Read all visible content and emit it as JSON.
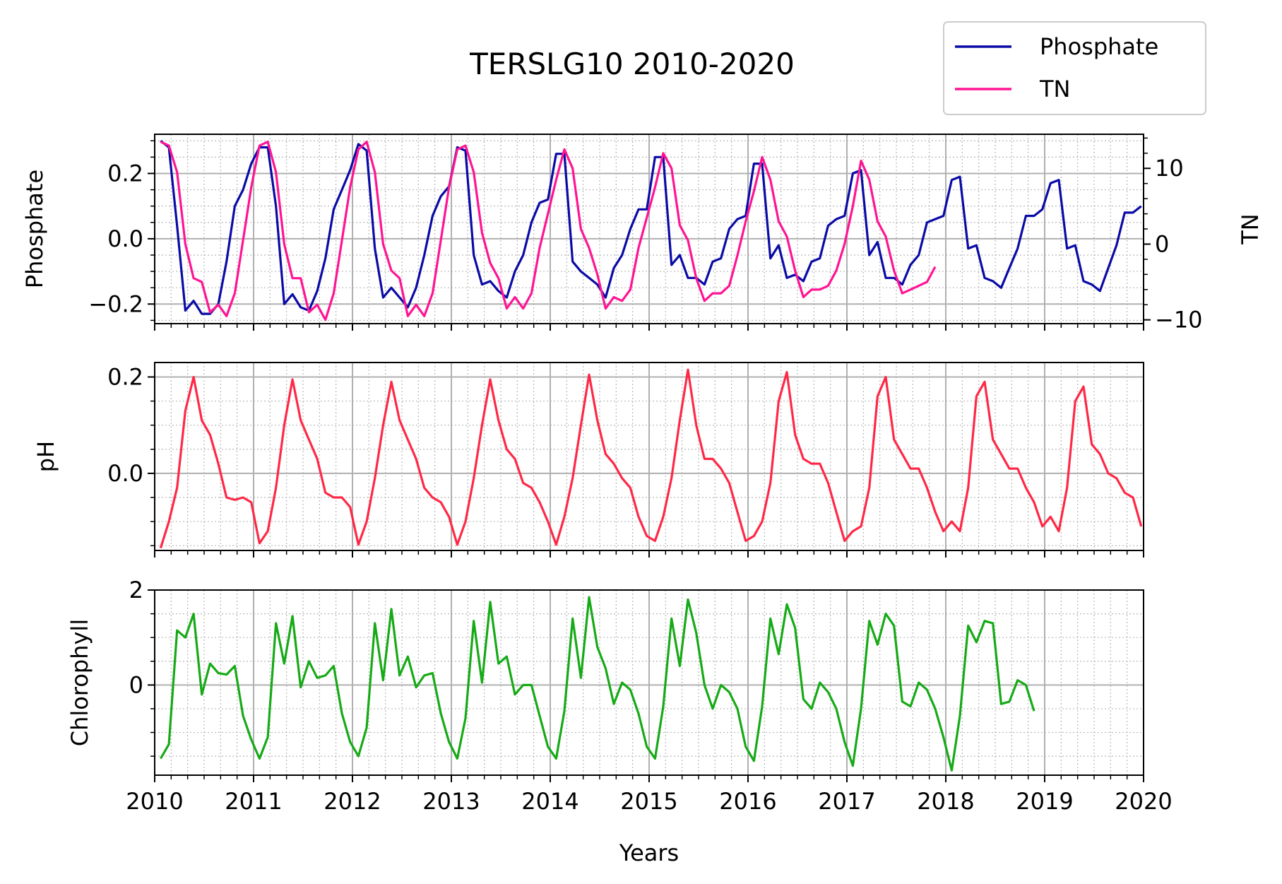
{
  "chart_data": {
    "type": "line",
    "title": "TERSLG10 2010-2020",
    "xlabel": "Years",
    "x_ticks": [
      "2010",
      "2011",
      "2012",
      "2013",
      "2014",
      "2015",
      "2016",
      "2017",
      "2018",
      "2019",
      "2020"
    ],
    "xlim": [
      2010,
      2020
    ],
    "legend": {
      "placement": "top-right",
      "entries": [
        {
          "name": "Phosphate",
          "color": "#0a0aa6"
        },
        {
          "name": "TN",
          "color": "#ff1493"
        }
      ]
    },
    "panels": [
      {
        "ylabel": "Phosphate",
        "ylim": [
          -0.26,
          0.32
        ],
        "y_ticks": [
          "−0.2",
          "0.0",
          "0.2"
        ],
        "y_tick_values": [
          -0.2,
          0.0,
          0.2
        ],
        "grid": true,
        "right_axis": {
          "ylabel": "TN",
          "ylim": [
            -10.5,
            14.5
          ],
          "y_ticks": [
            "−10",
            "0",
            "10"
          ],
          "y_tick_values": [
            -10,
            0,
            10
          ]
        },
        "series": [
          {
            "name": "Phosphate",
            "color": "#0a0aa6",
            "axis": "left",
            "x_start": 2010.06,
            "x_step": 0.08333,
            "values": [
              0.3,
              0.28,
              0.04,
              -0.22,
              -0.19,
              -0.23,
              -0.23,
              -0.2,
              -0.07,
              0.1,
              0.15,
              0.23,
              0.28,
              0.28,
              0.1,
              -0.2,
              -0.17,
              -0.21,
              -0.22,
              -0.16,
              -0.06,
              0.09,
              0.15,
              0.21,
              0.29,
              0.27,
              -0.03,
              -0.18,
              -0.15,
              -0.18,
              -0.21,
              -0.15,
              -0.05,
              0.07,
              0.13,
              0.16,
              0.28,
              0.27,
              -0.05,
              -0.14,
              -0.13,
              -0.16,
              -0.18,
              -0.1,
              -0.05,
              0.05,
              0.11,
              0.12,
              0.26,
              0.26,
              -0.07,
              -0.1,
              -0.12,
              -0.14,
              -0.18,
              -0.09,
              -0.05,
              0.03,
              0.09,
              0.09,
              0.25,
              0.25,
              -0.08,
              -0.05,
              -0.12,
              -0.12,
              -0.14,
              -0.07,
              -0.06,
              0.03,
              0.06,
              0.07,
              0.23,
              0.23,
              -0.06,
              -0.02,
              -0.12,
              -0.11,
              -0.13,
              -0.07,
              -0.06,
              0.04,
              0.06,
              0.07,
              0.2,
              0.21,
              -0.05,
              -0.01,
              -0.12,
              -0.12,
              -0.14,
              -0.08,
              -0.05,
              0.05,
              0.06,
              0.07,
              0.18,
              0.19,
              -0.03,
              -0.02,
              -0.12,
              -0.13,
              -0.15,
              -0.09,
              -0.03,
              0.07,
              0.07,
              0.09,
              0.17,
              0.18,
              -0.03,
              -0.02,
              -0.13,
              -0.14,
              -0.16,
              -0.09,
              -0.02,
              0.08,
              0.08,
              0.1
            ]
          },
          {
            "name": "TN",
            "color": "#ff1493",
            "axis": "right",
            "x_start": 2010.06,
            "x_step": 0.08333,
            "values": [
              13.5,
              13.0,
              9.5,
              0.0,
              -4.5,
              -5.0,
              -9.0,
              -8.0,
              -9.5,
              -6.5,
              0.5,
              7.5,
              13.0,
              13.5,
              9.5,
              0.0,
              -4.5,
              -4.5,
              -9.0,
              -8.0,
              -10.0,
              -6.5,
              0.5,
              7.5,
              12.5,
              13.5,
              9.5,
              0.0,
              -3.5,
              -4.5,
              -9.5,
              -8.0,
              -9.5,
              -6.5,
              0.5,
              7.5,
              12.5,
              13.0,
              9.5,
              1.5,
              -2.5,
              -4.5,
              -8.5,
              -7.0,
              -8.5,
              -6.5,
              -0.5,
              4.0,
              8.5,
              12.5,
              10.0,
              2.0,
              -0.5,
              -4.0,
              -8.5,
              -7.0,
              -7.5,
              -6.0,
              -0.5,
              3.5,
              7.5,
              12.0,
              10.0,
              2.5,
              0.5,
              -4.5,
              -7.5,
              -6.5,
              -6.5,
              -5.5,
              -1.5,
              3.0,
              7.0,
              11.5,
              8.5,
              3.0,
              1.0,
              -3.5,
              -7.0,
              -6.0,
              -6.0,
              -5.5,
              -3.5,
              0.0,
              5.0,
              11.0,
              8.5,
              3.0,
              1.0,
              -3.5,
              -6.5,
              -6.0,
              -5.5,
              -5.0,
              -3.0
            ]
          }
        ]
      },
      {
        "ylabel": "pH",
        "ylim": [
          -0.16,
          0.23
        ],
        "y_ticks": [
          "0.0",
          "0.2"
        ],
        "y_tick_values": [
          0.0,
          0.2
        ],
        "grid": true,
        "series": [
          {
            "name": "pH",
            "color": "#ff2846",
            "axis": "left",
            "x_start": 2010.06,
            "x_step": 0.08333,
            "values": [
              -0.155,
              -0.1,
              -0.03,
              0.13,
              0.2,
              0.11,
              0.08,
              0.02,
              -0.05,
              -0.055,
              -0.05,
              -0.06,
              -0.145,
              -0.12,
              -0.03,
              0.1,
              0.195,
              0.11,
              0.07,
              0.03,
              -0.04,
              -0.05,
              -0.05,
              -0.07,
              -0.148,
              -0.1,
              -0.01,
              0.1,
              0.19,
              0.11,
              0.07,
              0.03,
              -0.03,
              -0.05,
              -0.06,
              -0.09,
              -0.148,
              -0.1,
              -0.01,
              0.1,
              0.195,
              0.11,
              0.05,
              0.03,
              -0.02,
              -0.03,
              -0.06,
              -0.1,
              -0.148,
              -0.09,
              -0.01,
              0.1,
              0.205,
              0.11,
              0.04,
              0.02,
              -0.01,
              -0.03,
              -0.09,
              -0.13,
              -0.14,
              -0.09,
              -0.01,
              0.11,
              0.215,
              0.1,
              0.03,
              0.03,
              0.01,
              -0.02,
              -0.08,
              -0.14,
              -0.13,
              -0.1,
              -0.02,
              0.15,
              0.21,
              0.08,
              0.03,
              0.02,
              0.02,
              -0.02,
              -0.08,
              -0.14,
              -0.12,
              -0.11,
              -0.03,
              0.16,
              0.2,
              0.07,
              0.04,
              0.01,
              0.01,
              -0.03,
              -0.08,
              -0.12,
              -0.1,
              -0.12,
              -0.03,
              0.16,
              0.19,
              0.07,
              0.04,
              0.01,
              0.01,
              -0.03,
              -0.06,
              -0.11,
              -0.09,
              -0.12,
              -0.03,
              0.15,
              0.18,
              0.06,
              0.04,
              0.0,
              -0.01,
              -0.04,
              -0.05,
              -0.11
            ]
          }
        ]
      },
      {
        "ylabel": "Chlorophyll",
        "ylim": [
          -1.9,
          2.0
        ],
        "y_ticks": [
          "0",
          "2"
        ],
        "y_tick_values": [
          0,
          2
        ],
        "grid": true,
        "series": [
          {
            "name": "Chlorophyll",
            "color": "#16aa16",
            "axis": "left",
            "x_start": 2010.06,
            "x_step": 0.08333,
            "values": [
              -1.55,
              -1.25,
              1.15,
              1.0,
              1.5,
              -0.2,
              0.45,
              0.25,
              0.22,
              0.4,
              -0.65,
              -1.15,
              -1.55,
              -1.1,
              1.3,
              0.45,
              1.45,
              -0.05,
              0.5,
              0.15,
              0.2,
              0.4,
              -0.6,
              -1.2,
              -1.5,
              -0.9,
              1.3,
              0.1,
              1.6,
              0.2,
              0.6,
              -0.05,
              0.2,
              0.25,
              -0.6,
              -1.2,
              -1.55,
              -0.7,
              1.35,
              0.05,
              1.75,
              0.45,
              0.6,
              -0.2,
              0.0,
              0.0,
              -0.65,
              -1.3,
              -1.55,
              -0.55,
              1.4,
              0.15,
              1.85,
              0.8,
              0.35,
              -0.4,
              0.05,
              -0.1,
              -0.6,
              -1.3,
              -1.55,
              -0.45,
              1.4,
              0.4,
              1.8,
              1.1,
              0.0,
              -0.5,
              0.0,
              -0.15,
              -0.5,
              -1.3,
              -1.6,
              -0.45,
              1.4,
              0.65,
              1.7,
              1.2,
              -0.3,
              -0.5,
              0.05,
              -0.15,
              -0.5,
              -1.2,
              -1.7,
              -0.5,
              1.35,
              0.85,
              1.5,
              1.25,
              -0.35,
              -0.45,
              0.05,
              -0.1,
              -0.5,
              -1.1,
              -1.8,
              -0.65,
              1.25,
              0.9,
              1.35,
              1.3,
              -0.4,
              -0.35,
              0.1,
              0.0,
              -0.55
            ]
          }
        ]
      }
    ]
  }
}
